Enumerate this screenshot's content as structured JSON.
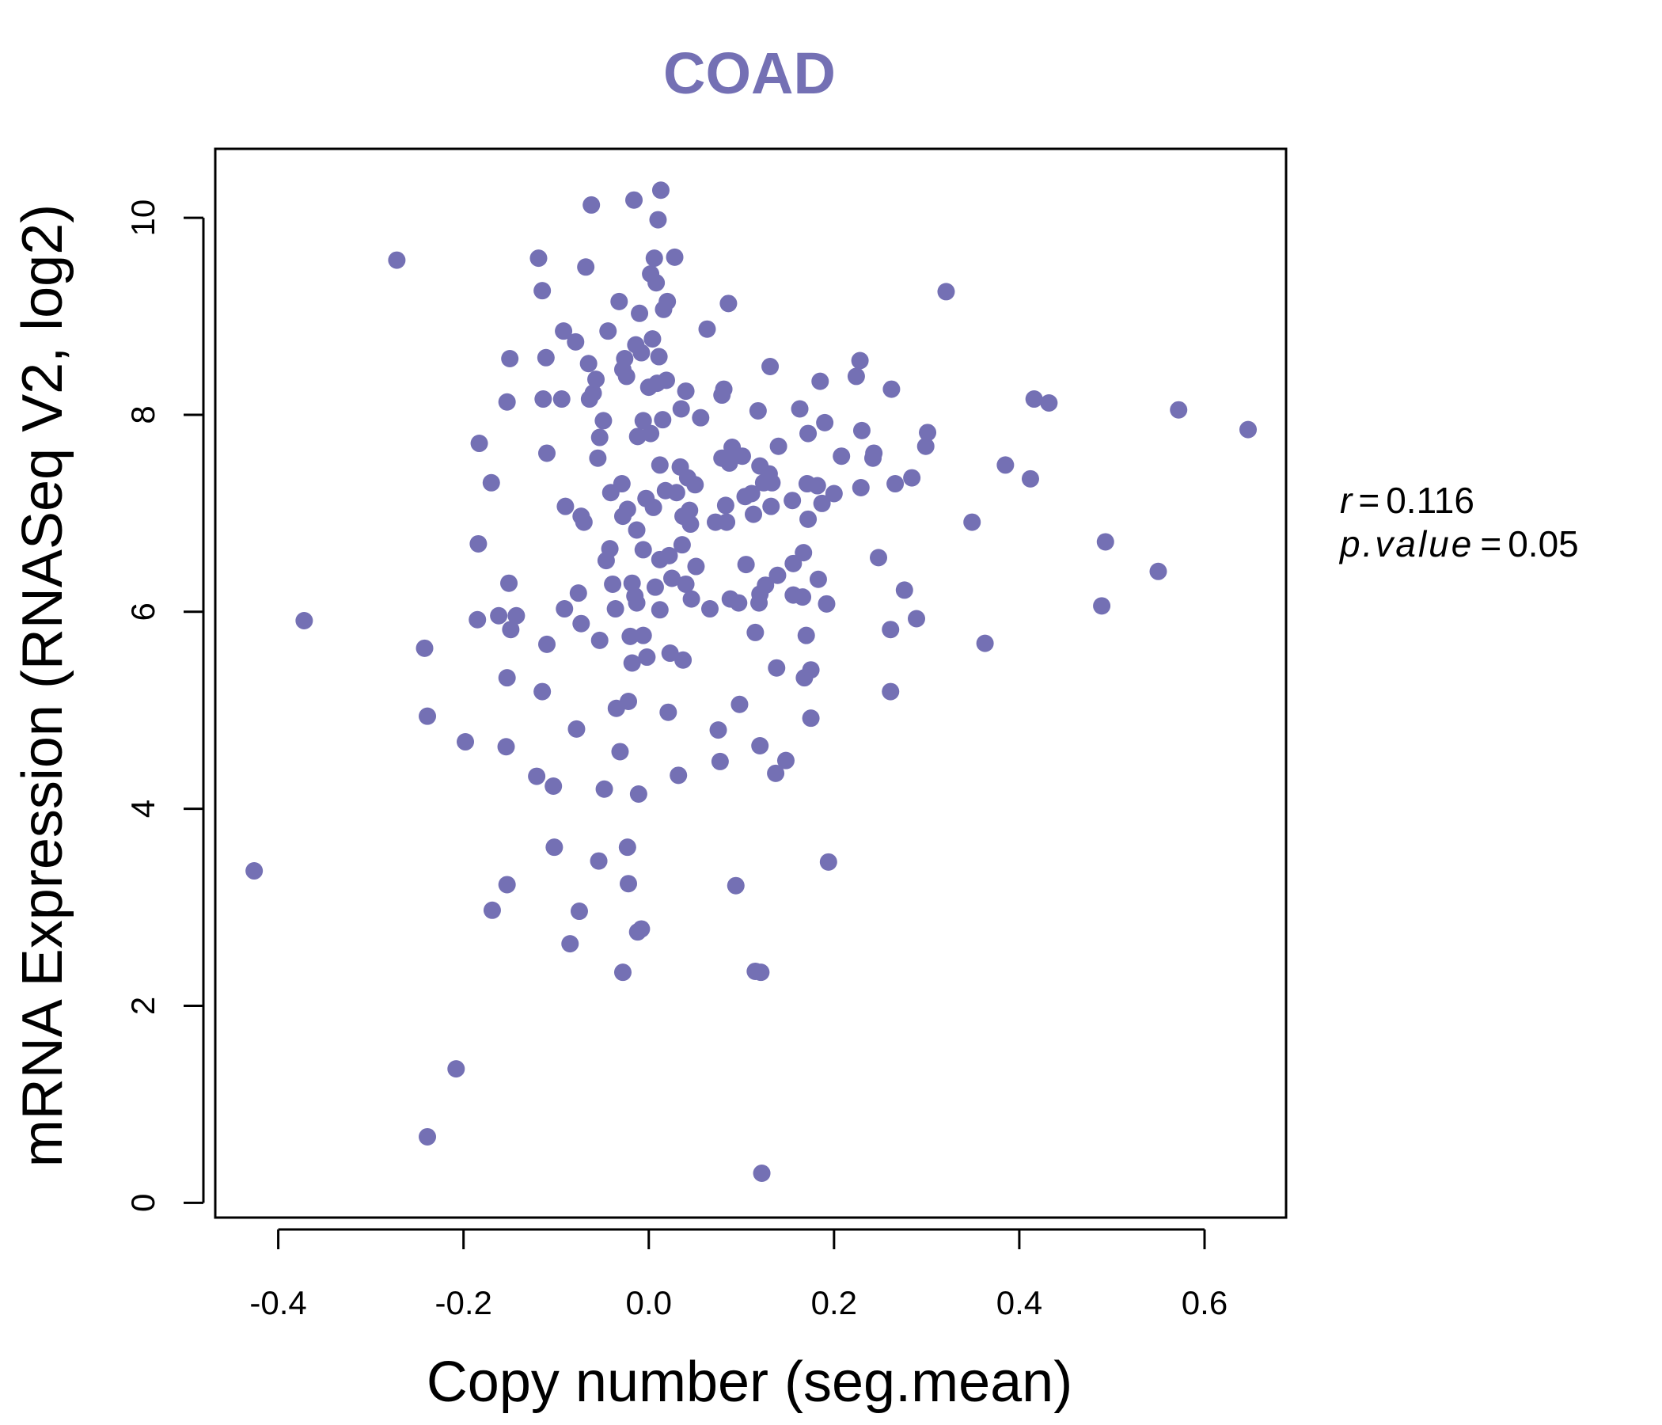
{
  "colors": {
    "accent": "#7470b4",
    "axis": "#000000",
    "background": "#ffffff"
  },
  "stats": {
    "r_label": "r",
    "r_value": "0.116",
    "p_label": "p.value",
    "p_value": "0.05",
    "equals": "="
  },
  "chart_data": {
    "type": "scatter",
    "title": "COAD",
    "xlabel": "Copy number (seg.mean)",
    "ylabel": "mRNA Expression (RNASeq V2, log2)",
    "xlim": [
      -0.468,
      0.688
    ],
    "ylim": [
      -0.15,
      10.7
    ],
    "xticks": [
      -0.4,
      -0.2,
      0.0,
      0.2,
      0.4,
      0.6
    ],
    "xtick_labels": [
      "-0.4",
      "-0.2",
      "0.0",
      "0.2",
      "0.4",
      "0.6"
    ],
    "yticks": [
      0,
      2,
      4,
      6,
      8,
      10
    ],
    "ytick_labels": [
      "0",
      "2",
      "4",
      "6",
      "8",
      "10"
    ],
    "points": [
      [
        -0.426,
        3.37
      ],
      [
        -0.372,
        5.91
      ],
      [
        -0.272,
        9.57
      ],
      [
        -0.242,
        5.63
      ],
      [
        -0.239,
        4.94
      ],
      [
        -0.239,
        0.67
      ],
      [
        -0.198,
        4.68
      ],
      [
        -0.208,
        1.36
      ],
      [
        -0.183,
        7.71
      ],
      [
        -0.184,
        6.69
      ],
      [
        -0.185,
        5.92
      ],
      [
        -0.17,
        7.31
      ],
      [
        -0.162,
        5.96
      ],
      [
        -0.15,
        8.57
      ],
      [
        -0.153,
        8.13
      ],
      [
        -0.151,
        6.29
      ],
      [
        -0.149,
        5.82
      ],
      [
        -0.153,
        5.33
      ],
      [
        -0.154,
        4.63
      ],
      [
        -0.143,
        5.96
      ],
      [
        -0.153,
        3.23
      ],
      [
        -0.169,
        2.97
      ],
      [
        -0.119,
        9.59
      ],
      [
        -0.115,
        9.26
      ],
      [
        -0.111,
        8.58
      ],
      [
        -0.114,
        8.16
      ],
      [
        -0.11,
        7.61
      ],
      [
        -0.11,
        5.67
      ],
      [
        -0.115,
        5.19
      ],
      [
        -0.121,
        4.33
      ],
      [
        -0.103,
        4.23
      ],
      [
        -0.102,
        3.61
      ],
      [
        -0.092,
        8.85
      ],
      [
        -0.094,
        8.16
      ],
      [
        -0.09,
        7.07
      ],
      [
        -0.091,
        6.03
      ],
      [
        -0.079,
        8.74
      ],
      [
        -0.078,
        4.81
      ],
      [
        -0.076,
        6.19
      ],
      [
        -0.073,
        5.88
      ],
      [
        -0.073,
        6.97
      ],
      [
        -0.07,
        6.91
      ],
      [
        -0.068,
        9.5
      ],
      [
        -0.065,
        8.52
      ],
      [
        -0.062,
        10.13
      ],
      [
        -0.064,
        8.16
      ],
      [
        -0.06,
        8.22
      ],
      [
        -0.057,
        8.36
      ],
      [
        -0.055,
        7.56
      ],
      [
        -0.053,
        5.71
      ],
      [
        -0.053,
        7.77
      ],
      [
        -0.049,
        7.94
      ],
      [
        -0.048,
        4.2
      ],
      [
        -0.054,
        3.47
      ],
      [
        -0.075,
        2.96
      ],
      [
        -0.085,
        2.63
      ],
      [
        -0.044,
        8.85
      ],
      [
        -0.046,
        6.52
      ],
      [
        -0.042,
        6.64
      ],
      [
        -0.041,
        7.21
      ],
      [
        -0.039,
        6.28
      ],
      [
        -0.036,
        6.03
      ],
      [
        -0.035,
        5.02
      ],
      [
        -0.032,
        9.15
      ],
      [
        -0.031,
        4.58
      ],
      [
        -0.029,
        7.3
      ],
      [
        -0.028,
        6.97
      ],
      [
        -0.028,
        8.46
      ],
      [
        -0.026,
        8.57
      ],
      [
        -0.024,
        8.39
      ],
      [
        -0.023,
        7.04
      ],
      [
        -0.022,
        5.09
      ],
      [
        -0.023,
        3.61
      ],
      [
        -0.022,
        3.24
      ],
      [
        -0.028,
        2.34
      ],
      [
        -0.02,
        5.75
      ],
      [
        -0.018,
        6.29
      ],
      [
        -0.018,
        5.48
      ],
      [
        -0.016,
        10.18
      ],
      [
        -0.015,
        6.16
      ],
      [
        -0.014,
        8.71
      ],
      [
        -0.012,
        7.78
      ],
      [
        -0.013,
        6.83
      ],
      [
        -0.013,
        6.09
      ],
      [
        -0.011,
        4.15
      ],
      [
        -0.012,
        2.75
      ],
      [
        -0.008,
        2.78
      ],
      [
        -0.01,
        9.03
      ],
      [
        -0.008,
        8.63
      ],
      [
        -0.006,
        7.94
      ],
      [
        -0.006,
        6.63
      ],
      [
        -0.006,
        5.76
      ],
      [
        -0.003,
        7.15
      ],
      [
        -0.002,
        5.54
      ],
      [
        0.0,
        8.28
      ],
      [
        0.002,
        7.81
      ],
      [
        0.002,
        9.43
      ],
      [
        0.004,
        8.77
      ],
      [
        0.005,
        7.06
      ],
      [
        0.006,
        9.59
      ],
      [
        0.007,
        6.25
      ],
      [
        0.008,
        9.34
      ],
      [
        0.009,
        8.32
      ],
      [
        0.01,
        9.98
      ],
      [
        0.011,
        8.59
      ],
      [
        0.012,
        7.49
      ],
      [
        0.012,
        6.53
      ],
      [
        0.012,
        6.02
      ],
      [
        0.013,
        10.28
      ],
      [
        0.015,
        7.95
      ],
      [
        0.016,
        9.07
      ],
      [
        0.018,
        7.23
      ],
      [
        0.019,
        8.35
      ],
      [
        0.02,
        9.15
      ],
      [
        0.021,
        4.98
      ],
      [
        0.022,
        6.57
      ],
      [
        0.023,
        5.58
      ],
      [
        0.025,
        6.34
      ],
      [
        0.028,
        9.6
      ],
      [
        0.03,
        7.21
      ],
      [
        0.032,
        4.34
      ],
      [
        0.034,
        7.47
      ],
      [
        0.035,
        8.06
      ],
      [
        0.036,
        6.68
      ],
      [
        0.037,
        6.97
      ],
      [
        0.037,
        5.51
      ],
      [
        0.04,
        8.24
      ],
      [
        0.04,
        6.28
      ],
      [
        0.042,
        7.36
      ],
      [
        0.044,
        7.03
      ],
      [
        0.045,
        6.89
      ],
      [
        0.046,
        6.13
      ],
      [
        0.05,
        7.29
      ],
      [
        0.051,
        6.46
      ],
      [
        0.056,
        7.97
      ],
      [
        0.063,
        8.87
      ],
      [
        0.066,
        6.03
      ],
      [
        0.072,
        6.91
      ],
      [
        0.075,
        4.8
      ],
      [
        0.077,
        4.48
      ],
      [
        0.079,
        7.56
      ],
      [
        0.079,
        8.2
      ],
      [
        0.081,
        8.26
      ],
      [
        0.083,
        7.08
      ],
      [
        0.084,
        6.91
      ],
      [
        0.086,
        9.13
      ],
      [
        0.087,
        7.51
      ],
      [
        0.088,
        6.13
      ],
      [
        0.09,
        7.67
      ],
      [
        0.094,
        3.22
      ],
      [
        0.097,
        6.09
      ],
      [
        0.098,
        5.06
      ],
      [
        0.101,
        7.58
      ],
      [
        0.104,
        7.17
      ],
      [
        0.105,
        6.48
      ],
      [
        0.111,
        7.2
      ],
      [
        0.113,
        6.99
      ],
      [
        0.115,
        2.35
      ],
      [
        0.115,
        5.79
      ],
      [
        0.118,
        8.04
      ],
      [
        0.119,
        6.09
      ],
      [
        0.12,
        6.18
      ],
      [
        0.12,
        7.48
      ],
      [
        0.12,
        4.64
      ],
      [
        0.121,
        2.34
      ],
      [
        0.122,
        0.3
      ],
      [
        0.124,
        7.31
      ],
      [
        0.126,
        6.27
      ],
      [
        0.13,
        7.4
      ],
      [
        0.131,
        8.49
      ],
      [
        0.132,
        7.07
      ],
      [
        0.133,
        7.31
      ],
      [
        0.137,
        4.36
      ],
      [
        0.138,
        5.43
      ],
      [
        0.139,
        6.37
      ],
      [
        0.14,
        7.68
      ],
      [
        0.148,
        4.49
      ],
      [
        0.155,
        7.13
      ],
      [
        0.156,
        6.17
      ],
      [
        0.156,
        6.49
      ],
      [
        0.163,
        8.06
      ],
      [
        0.166,
        6.15
      ],
      [
        0.167,
        6.6
      ],
      [
        0.168,
        5.33
      ],
      [
        0.17,
        5.76
      ],
      [
        0.171,
        7.3
      ],
      [
        0.172,
        7.81
      ],
      [
        0.172,
        6.94
      ],
      [
        0.175,
        5.41
      ],
      [
        0.175,
        4.92
      ],
      [
        0.182,
        7.28
      ],
      [
        0.183,
        6.33
      ],
      [
        0.185,
        8.34
      ],
      [
        0.187,
        7.1
      ],
      [
        0.19,
        7.92
      ],
      [
        0.192,
        6.08
      ],
      [
        0.194,
        3.46
      ],
      [
        0.2,
        7.2
      ],
      [
        0.208,
        7.58
      ],
      [
        0.224,
        8.39
      ],
      [
        0.228,
        8.55
      ],
      [
        0.229,
        7.26
      ],
      [
        0.23,
        7.84
      ],
      [
        0.242,
        7.56
      ],
      [
        0.243,
        7.61
      ],
      [
        0.248,
        6.55
      ],
      [
        0.261,
        5.19
      ],
      [
        0.261,
        5.82
      ],
      [
        0.262,
        8.26
      ],
      [
        0.266,
        7.3
      ],
      [
        0.276,
        6.22
      ],
      [
        0.284,
        7.36
      ],
      [
        0.289,
        5.93
      ],
      [
        0.299,
        7.68
      ],
      [
        0.301,
        7.82
      ],
      [
        0.321,
        9.25
      ],
      [
        0.349,
        6.91
      ],
      [
        0.363,
        5.68
      ],
      [
        0.385,
        7.49
      ],
      [
        0.412,
        7.35
      ],
      [
        0.416,
        8.16
      ],
      [
        0.432,
        8.12
      ],
      [
        0.489,
        6.06
      ],
      [
        0.493,
        6.71
      ],
      [
        0.55,
        6.41
      ],
      [
        0.572,
        8.05
      ],
      [
        0.647,
        7.85
      ]
    ]
  }
}
